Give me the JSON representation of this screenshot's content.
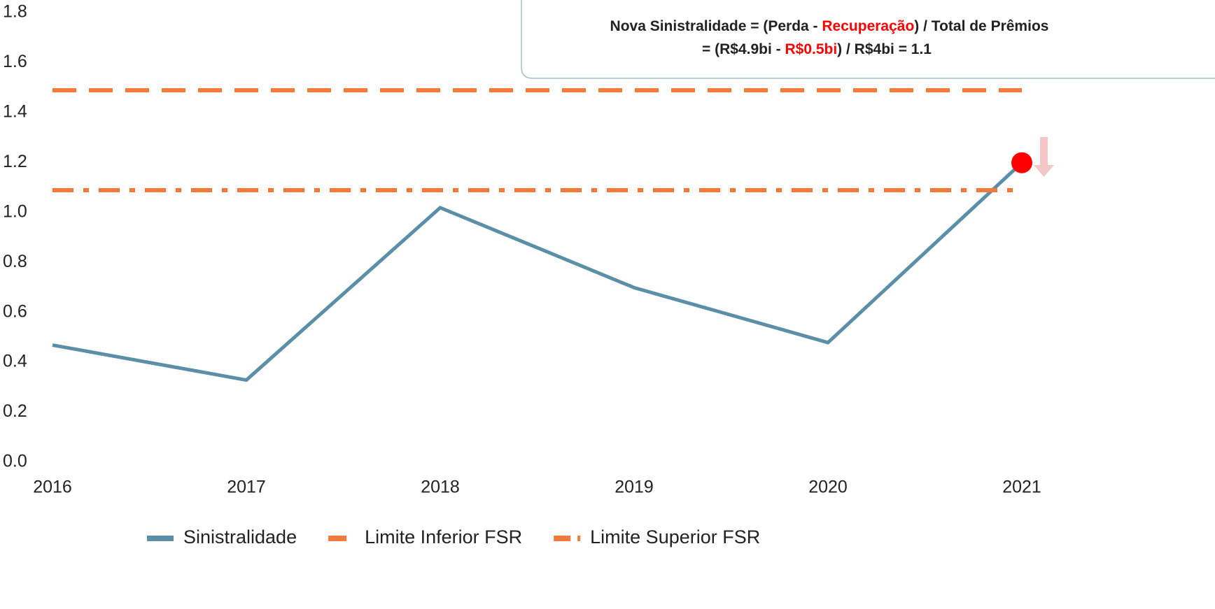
{
  "chart_data": {
    "type": "line",
    "categories": [
      "2016",
      "2017",
      "2018",
      "2019",
      "2020",
      "2021"
    ],
    "series": [
      {
        "name": "Sinistralidade",
        "color": "#5b8fa8",
        "style": "solid",
        "values": [
          0.48,
          0.34,
          1.03,
          0.71,
          0.49,
          1.21
        ]
      },
      {
        "name": "Limite Inferior FSR",
        "color": "#f47a3c",
        "style": "dashdot",
        "values": [
          1.1,
          1.1,
          1.1,
          1.1,
          1.1,
          1.1
        ]
      },
      {
        "name": "Limite Superior FSR",
        "color": "#f47a3c",
        "style": "dashed",
        "values": [
          1.5,
          1.5,
          1.5,
          1.5,
          1.5,
          1.5
        ]
      }
    ],
    "ylim": [
      0,
      1.8
    ],
    "yticks": [
      {
        "value": 0,
        "label": "0.0"
      },
      0.2,
      0.4,
      0.6,
      0.8,
      {
        "value": 1,
        "label": "1.0"
      },
      1.2,
      1.4,
      1.6,
      1.8
    ],
    "highlight": {
      "category": "2021",
      "color": "#ff0000"
    },
    "annotation": {
      "line1": [
        "Nova Sinistralidade = (Perda - ",
        "Recuperação",
        ") / Total de Prêmios"
      ],
      "line2": [
        "= (R$4.9bi - ",
        "R$0.5bi",
        ") / R$4bi = 1.1"
      ],
      "highlight_color": "#ff0000"
    }
  }
}
